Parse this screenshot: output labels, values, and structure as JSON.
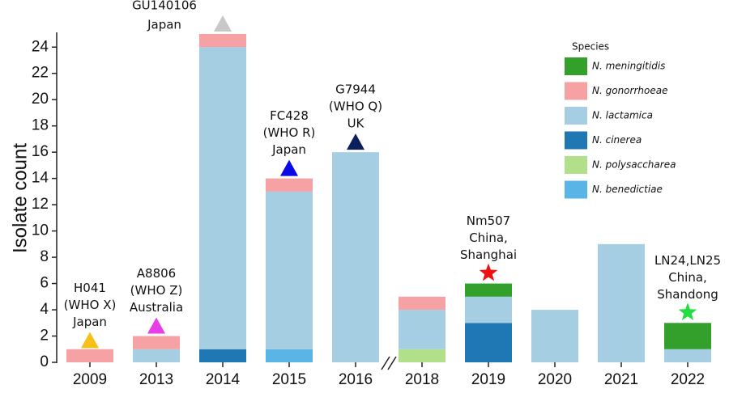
{
  "chart_data": {
    "type": "bar",
    "stacked": true,
    "y_label": "Isolate count",
    "categories": [
      "2009",
      "2013",
      "2014",
      "2015",
      "2016",
      "2018",
      "2019",
      "2020",
      "2021",
      "2022"
    ],
    "axis_break_after": "2016",
    "legend_title": "Species",
    "series": [
      {
        "name": "N. meningitidis",
        "color": "#33a02c",
        "values": [
          0,
          0,
          0,
          0,
          0,
          0,
          1,
          0,
          0,
          2
        ]
      },
      {
        "name": "N. gonorrhoeae",
        "color": "#f6a1a3",
        "values": [
          1,
          1,
          1,
          1,
          0,
          1,
          0,
          0,
          0,
          0
        ]
      },
      {
        "name": "N. lactamica",
        "color": "#a6cee3",
        "values": [
          0,
          1,
          23,
          12,
          16,
          3,
          2,
          4,
          9,
          1
        ]
      },
      {
        "name": "N. cinerea",
        "color": "#1f78b4",
        "values": [
          0,
          0,
          1,
          0,
          0,
          0,
          3,
          0,
          0,
          0
        ]
      },
      {
        "name": "N. polysaccharea",
        "color": "#b2df8a",
        "values": [
          0,
          0,
          0,
          0,
          0,
          1,
          0,
          0,
          0,
          0
        ]
      },
      {
        "name": "N. benedictiae",
        "color": "#5ab4e5",
        "values": [
          0,
          0,
          0,
          1,
          0,
          0,
          0,
          0,
          0,
          0
        ]
      }
    ],
    "ylim": [
      0,
      25
    ],
    "yticks": [
      0,
      2,
      4,
      6,
      8,
      10,
      12,
      14,
      16,
      18,
      20,
      22,
      24
    ],
    "annotations": [
      {
        "category": "2009",
        "lines": [
          "H041",
          "(WHO X)",
          "Japan"
        ],
        "marker": "triangle",
        "color": "#f5c01a",
        "y": 1.7
      },
      {
        "category": "2013",
        "lines": [
          "A8806",
          "(WHO Z)",
          "Australia"
        ],
        "marker": "triangle",
        "color": "#e83ee8",
        "y": 2.8
      },
      {
        "category": "2014",
        "lines": [
          "GU140106",
          "Japan"
        ],
        "marker": "triangle",
        "color": "#c8c8c8",
        "y": 25.8,
        "label_position": "left"
      },
      {
        "category": "2015",
        "lines": [
          "FC428",
          "(WHO R)",
          "Japan"
        ],
        "marker": "triangle",
        "color": "#0a0ae6",
        "y": 14.8
      },
      {
        "category": "2016",
        "lines": [
          "G7944",
          "(WHO Q)",
          "UK"
        ],
        "marker": "triangle",
        "color": "#0b1f5c",
        "y": 16.8
      },
      {
        "category": "2019",
        "lines": [
          "Nm507",
          "China,",
          "Shanghai"
        ],
        "marker": "star",
        "color": "#ee1111",
        "y": 6.8
      },
      {
        "category": "2022",
        "lines": [
          "LN24,LN25",
          "China,",
          "Shandong"
        ],
        "marker": "star",
        "color": "#22dd44",
        "y": 3.8
      }
    ]
  }
}
